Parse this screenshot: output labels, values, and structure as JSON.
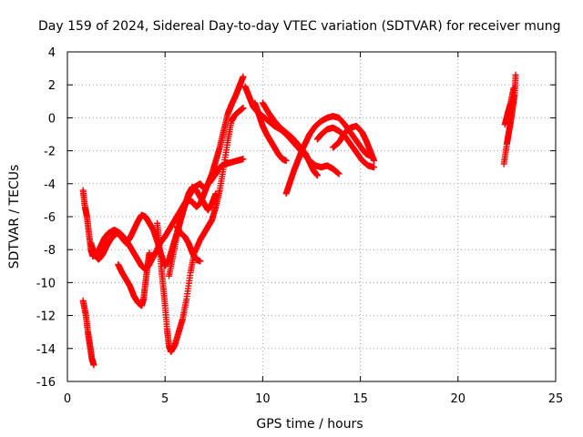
{
  "chart_data": {
    "type": "scatter",
    "title": "Day 159 of 2024, Sidereal Day-to-day VTEC variation (SDTVAR) for receiver mung",
    "xlabel": "GPS time / hours",
    "ylabel": "SDTVAR / TECUs",
    "xlim": [
      0,
      25
    ],
    "ylim": [
      -16,
      4
    ],
    "xticks": [
      0,
      5,
      10,
      15,
      20,
      25
    ],
    "yticks": [
      -16,
      -14,
      -12,
      -10,
      -8,
      -6,
      -4,
      -2,
      0,
      2,
      4
    ],
    "grid": true,
    "marker": "plus",
    "color": "#ff0000",
    "series": [
      {
        "name": "trace-a",
        "points": [
          [
            0.8,
            -11.1
          ],
          [
            0.95,
            -12.0
          ],
          [
            1.05,
            -13.0
          ],
          [
            1.15,
            -13.8
          ],
          [
            1.25,
            -14.6
          ],
          [
            1.35,
            -15.0
          ]
        ]
      },
      {
        "name": "trace-b",
        "points": [
          [
            0.8,
            -4.4
          ],
          [
            0.9,
            -5.4
          ],
          [
            1.0,
            -6.0
          ],
          [
            1.1,
            -7.0
          ],
          [
            1.2,
            -8.0
          ],
          [
            1.3,
            -8.4
          ],
          [
            1.5,
            -8.3
          ],
          [
            1.7,
            -7.8
          ],
          [
            1.9,
            -7.3
          ],
          [
            2.1,
            -7.0
          ],
          [
            2.4,
            -6.8
          ],
          [
            2.7,
            -7.0
          ],
          [
            3.0,
            -7.4
          ],
          [
            3.2,
            -7.8
          ],
          [
            3.4,
            -8.2
          ],
          [
            3.6,
            -8.6
          ],
          [
            3.8,
            -9.0
          ],
          [
            4.0,
            -9.2
          ],
          [
            4.2,
            -8.9
          ],
          [
            4.5,
            -8.2
          ],
          [
            4.8,
            -7.5
          ],
          [
            5.0,
            -7.2
          ],
          [
            5.3,
            -6.6
          ],
          [
            5.6,
            -6.0
          ],
          [
            5.9,
            -5.4
          ],
          [
            6.2,
            -4.8
          ],
          [
            6.5,
            -4.2
          ],
          [
            6.8,
            -4.0
          ],
          [
            7.0,
            -4.3
          ],
          [
            7.3,
            -3.9
          ],
          [
            7.6,
            -3.4
          ],
          [
            7.8,
            -3.0
          ],
          [
            8.1,
            -2.8
          ],
          [
            8.4,
            -2.7
          ],
          [
            8.7,
            -2.6
          ],
          [
            9.0,
            -2.5
          ]
        ]
      },
      {
        "name": "trace-c",
        "points": [
          [
            1.2,
            -7.6
          ],
          [
            1.4,
            -8.3
          ],
          [
            1.6,
            -8.6
          ],
          [
            1.8,
            -8.3
          ],
          [
            2.0,
            -7.8
          ],
          [
            2.2,
            -7.4
          ],
          [
            2.4,
            -7.1
          ],
          [
            2.6,
            -7.0
          ],
          [
            2.8,
            -7.3
          ],
          [
            3.0,
            -7.6
          ],
          [
            3.2,
            -7.3
          ],
          [
            3.4,
            -6.8
          ],
          [
            3.6,
            -6.3
          ],
          [
            3.8,
            -5.9
          ],
          [
            4.0,
            -6.0
          ],
          [
            4.2,
            -6.4
          ],
          [
            4.4,
            -6.8
          ],
          [
            4.6,
            -7.5
          ],
          [
            4.8,
            -8.3
          ],
          [
            5.0,
            -9.0
          ],
          [
            5.2,
            -8.6
          ],
          [
            5.4,
            -7.8
          ],
          [
            5.6,
            -7.0
          ],
          [
            5.8,
            -6.1
          ],
          [
            6.0,
            -5.3
          ],
          [
            6.2,
            -5.0
          ],
          [
            6.4,
            -5.1
          ],
          [
            6.6,
            -5.4
          ],
          [
            6.8,
            -5.2
          ],
          [
            7.0,
            -4.6
          ],
          [
            7.2,
            -4.0
          ],
          [
            7.4,
            -3.4
          ],
          [
            7.6,
            -2.6
          ],
          [
            7.8,
            -1.8
          ],
          [
            8.0,
            -0.8
          ],
          [
            8.2,
            0.2
          ],
          [
            8.4,
            0.8
          ],
          [
            8.6,
            1.3
          ],
          [
            8.8,
            1.9
          ],
          [
            9.0,
            2.5
          ]
        ]
      },
      {
        "name": "trace-d",
        "points": [
          [
            2.6,
            -8.9
          ],
          [
            2.8,
            -9.4
          ],
          [
            3.0,
            -9.8
          ],
          [
            3.2,
            -10.2
          ],
          [
            3.4,
            -10.8
          ],
          [
            3.6,
            -11.2
          ],
          [
            3.8,
            -11.4
          ],
          [
            3.9,
            -11.0
          ],
          [
            4.0,
            -10.0
          ],
          [
            4.1,
            -9.0
          ],
          [
            4.2,
            -8.2
          ]
        ]
      },
      {
        "name": "trace-e",
        "points": [
          [
            4.6,
            -6.4
          ],
          [
            4.7,
            -7.6
          ],
          [
            4.8,
            -9.0
          ],
          [
            4.9,
            -10.2
          ],
          [
            5.0,
            -11.4
          ],
          [
            5.1,
            -12.8
          ],
          [
            5.2,
            -13.8
          ],
          [
            5.3,
            -14.2
          ],
          [
            5.5,
            -13.8
          ],
          [
            5.7,
            -13.0
          ],
          [
            5.9,
            -12.2
          ],
          [
            6.1,
            -11.0
          ],
          [
            6.3,
            -9.4
          ],
          [
            6.5,
            -8.2
          ],
          [
            6.8,
            -7.4
          ],
          [
            7.0,
            -7.0
          ],
          [
            7.2,
            -6.6
          ],
          [
            7.4,
            -6.2
          ],
          [
            7.6,
            -5.4
          ],
          [
            7.8,
            -4.4
          ],
          [
            8.0,
            -3.0
          ],
          [
            8.2,
            -1.5
          ],
          [
            8.4,
            -0.2
          ],
          [
            8.6,
            0.2
          ],
          [
            8.8,
            0.4
          ],
          [
            9.0,
            0.6
          ]
        ]
      },
      {
        "name": "trace-f",
        "points": [
          [
            5.6,
            -6.6
          ],
          [
            5.8,
            -7.0
          ],
          [
            6.0,
            -7.2
          ],
          [
            6.2,
            -7.6
          ],
          [
            6.4,
            -8.2
          ],
          [
            6.6,
            -8.6
          ],
          [
            6.8,
            -8.7
          ]
        ]
      },
      {
        "name": "trace-g",
        "points": [
          [
            5.2,
            -9.6
          ],
          [
            5.4,
            -8.4
          ],
          [
            5.6,
            -7.2
          ],
          [
            5.8,
            -6.2
          ],
          [
            6.0,
            -5.4
          ],
          [
            6.2,
            -4.6
          ],
          [
            6.4,
            -4.2
          ],
          [
            6.6,
            -4.4
          ],
          [
            6.8,
            -4.8
          ],
          [
            7.0,
            -5.2
          ],
          [
            7.2,
            -5.6
          ],
          [
            7.4,
            -5.2
          ],
          [
            7.6,
            -4.6
          ]
        ]
      },
      {
        "name": "trace-h",
        "points": [
          [
            9.1,
            1.9
          ],
          [
            9.3,
            1.3
          ],
          [
            9.5,
            0.7
          ],
          [
            9.7,
            0.4
          ],
          [
            9.9,
            0.2
          ],
          [
            10.1,
            0.0
          ],
          [
            10.3,
            -0.2
          ],
          [
            10.6,
            -0.5
          ],
          [
            10.9,
            -0.7
          ],
          [
            11.2,
            -1.0
          ],
          [
            11.5,
            -1.4
          ],
          [
            11.8,
            -1.8
          ],
          [
            12.1,
            -2.2
          ],
          [
            12.4,
            -2.6
          ],
          [
            12.7,
            -2.9
          ],
          [
            13.0,
            -3.0
          ],
          [
            13.3,
            -2.9
          ],
          [
            13.6,
            -3.1
          ],
          [
            13.9,
            -3.4
          ]
        ]
      },
      {
        "name": "trace-i",
        "points": [
          [
            9.6,
            0.9
          ],
          [
            9.8,
            0.2
          ],
          [
            10.0,
            -0.5
          ],
          [
            10.2,
            -1.0
          ],
          [
            10.4,
            -1.4
          ],
          [
            10.6,
            -1.8
          ],
          [
            10.8,
            -2.2
          ],
          [
            11.0,
            -2.5
          ],
          [
            11.2,
            -2.6
          ]
        ]
      },
      {
        "name": "trace-j",
        "points": [
          [
            10.0,
            0.9
          ],
          [
            10.3,
            0.3
          ],
          [
            10.6,
            -0.2
          ],
          [
            10.9,
            -0.6
          ],
          [
            11.2,
            -0.9
          ],
          [
            11.5,
            -1.2
          ],
          [
            11.8,
            -1.6
          ],
          [
            12.0,
            -1.9
          ],
          [
            12.2,
            -2.2
          ],
          [
            12.4,
            -2.7
          ],
          [
            12.6,
            -3.2
          ],
          [
            12.8,
            -3.5
          ]
        ]
      },
      {
        "name": "trace-k",
        "points": [
          [
            11.2,
            -4.6
          ],
          [
            11.4,
            -3.9
          ],
          [
            11.6,
            -3.2
          ],
          [
            11.8,
            -2.6
          ],
          [
            12.0,
            -2.0
          ],
          [
            12.2,
            -1.5
          ],
          [
            12.4,
            -1.0
          ],
          [
            12.7,
            -0.5
          ],
          [
            13.0,
            -0.2
          ],
          [
            13.3,
            0.0
          ],
          [
            13.6,
            0.1
          ],
          [
            13.9,
            0.0
          ],
          [
            14.2,
            -0.4
          ],
          [
            14.5,
            -0.9
          ],
          [
            14.8,
            -1.4
          ],
          [
            15.1,
            -1.9
          ],
          [
            15.3,
            -2.2
          ],
          [
            15.5,
            -2.3
          ]
        ]
      },
      {
        "name": "trace-l",
        "points": [
          [
            12.8,
            -1.3
          ],
          [
            13.0,
            -1.0
          ],
          [
            13.3,
            -0.7
          ],
          [
            13.6,
            -0.6
          ],
          [
            13.9,
            -0.8
          ],
          [
            14.2,
            -1.1
          ],
          [
            14.5,
            -1.6
          ],
          [
            14.8,
            -2.1
          ],
          [
            15.1,
            -2.6
          ],
          [
            15.4,
            -2.9
          ],
          [
            15.7,
            -3.0
          ]
        ]
      },
      {
        "name": "trace-m",
        "points": [
          [
            13.6,
            -1.8
          ],
          [
            13.9,
            -1.5
          ],
          [
            14.2,
            -0.9
          ],
          [
            14.5,
            -0.6
          ],
          [
            14.8,
            -0.5
          ],
          [
            15.1,
            -0.9
          ],
          [
            15.3,
            -1.4
          ],
          [
            15.5,
            -2.0
          ],
          [
            15.7,
            -2.6
          ]
        ]
      },
      {
        "name": "trace-n",
        "points": [
          [
            22.35,
            -2.8
          ],
          [
            22.5,
            -1.6
          ],
          [
            22.6,
            -0.9
          ],
          [
            22.7,
            -0.2
          ],
          [
            22.8,
            0.6
          ],
          [
            22.9,
            1.4
          ],
          [
            22.95,
            2.6
          ]
        ]
      },
      {
        "name": "trace-o",
        "points": [
          [
            22.4,
            -0.4
          ],
          [
            22.55,
            0.3
          ],
          [
            22.7,
            0.9
          ],
          [
            22.85,
            1.8
          ]
        ]
      }
    ]
  }
}
